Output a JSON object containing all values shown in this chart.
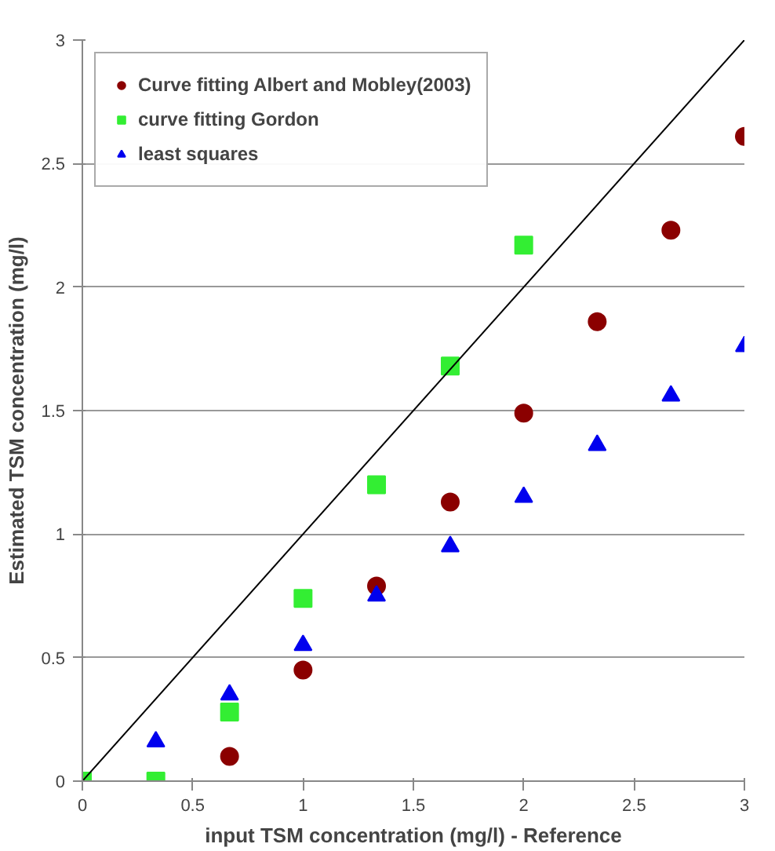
{
  "chart_data": {
    "type": "scatter",
    "xlabel": "input TSM concentration (mg/l) - Reference",
    "ylabel": "Estimated TSM concentration (mg/l)",
    "xlim": [
      0,
      3
    ],
    "ylim": [
      0,
      3
    ],
    "xticks": [
      0,
      0.5,
      1,
      1.5,
      2,
      2.5,
      3
    ],
    "yticks": [
      0,
      0.5,
      1,
      1.5,
      2,
      2.5,
      3
    ],
    "grid": "y",
    "legend": "top left",
    "series": [
      {
        "name": "Curve fitting Albert and Mobley(2003)",
        "color": "#8b0000",
        "marker": "circle",
        "x": [
          0.667,
          1,
          1.333,
          1.667,
          2,
          2.333,
          2.667,
          3
        ],
        "values": [
          0.1,
          0.45,
          0.79,
          1.13,
          1.49,
          1.86,
          2.23,
          2.61
        ]
      },
      {
        "name": "curve fitting Gordon",
        "color": "#33ee33",
        "marker": "square",
        "x": [
          0,
          0.333,
          0.667,
          1,
          1.333,
          1.667,
          2
        ],
        "values": [
          0,
          0,
          0.28,
          0.74,
          1.2,
          1.68,
          2.17
        ]
      },
      {
        "name": "least squares",
        "color": "#0000ee",
        "marker": "triangle",
        "x": [
          0.333,
          0.667,
          1,
          1.333,
          1.667,
          2,
          2.333,
          2.667,
          3
        ],
        "values": [
          0.16,
          0.35,
          0.55,
          0.75,
          0.95,
          1.15,
          1.36,
          1.56,
          1.76
        ]
      },
      {
        "type": "line",
        "color": "#000000",
        "marker": "none",
        "x": [
          0,
          3
        ],
        "values": [
          0,
          3
        ]
      }
    ]
  }
}
